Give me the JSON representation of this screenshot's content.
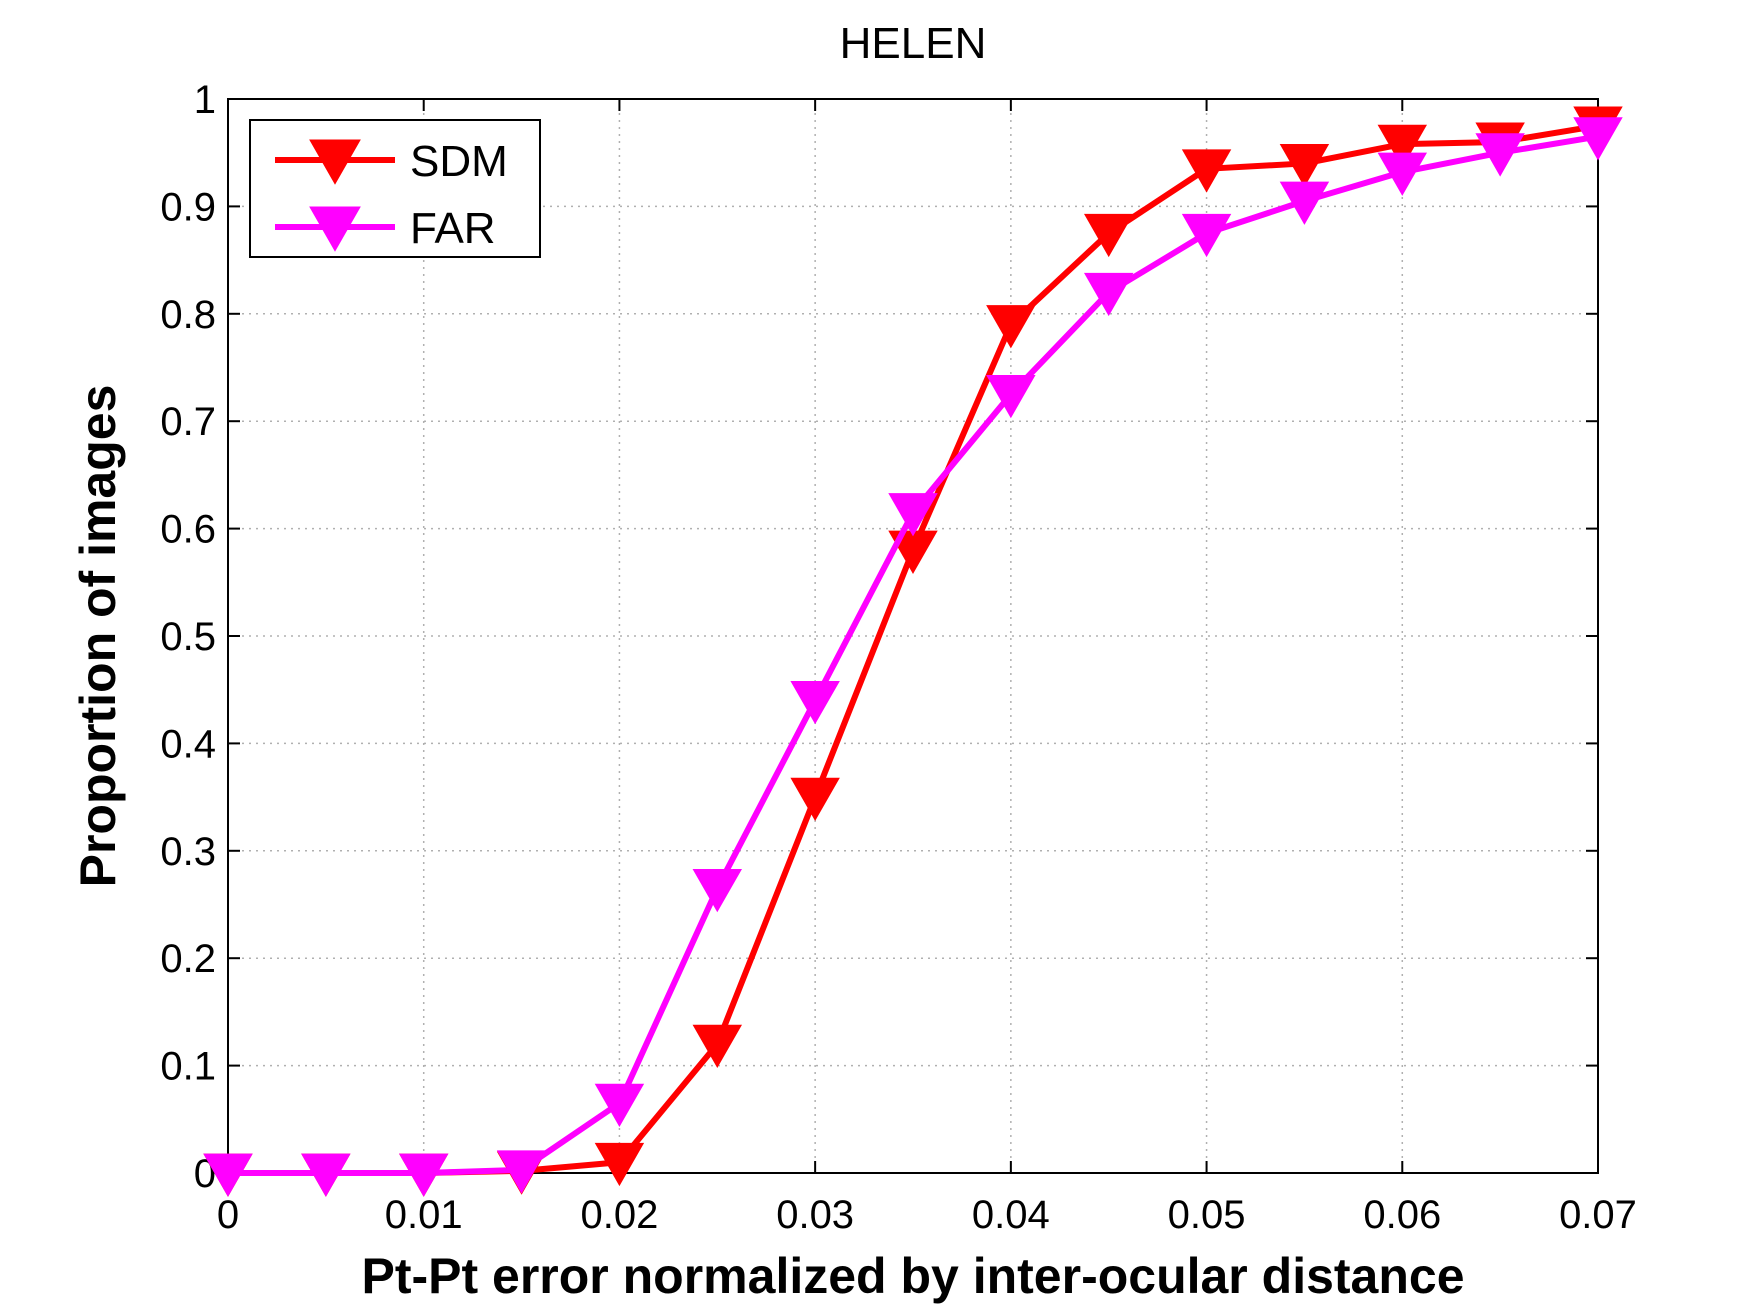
{
  "chart_data": {
    "type": "line",
    "title": "HELEN",
    "xlabel": "Pt-Pt error normalized by inter-ocular distance",
    "ylabel": "Proportion of images",
    "xlim": [
      0,
      0.07
    ],
    "ylim": [
      0,
      1
    ],
    "xticks": [
      0,
      0.01,
      0.02,
      0.03,
      0.04,
      0.05,
      0.06,
      0.07
    ],
    "xtick_labels": [
      "0",
      "0.01",
      "0.02",
      "0.03",
      "0.04",
      "0.05",
      "0.06",
      "0.07"
    ],
    "yticks": [
      0,
      0.1,
      0.2,
      0.3,
      0.4,
      0.5,
      0.6,
      0.7,
      0.8,
      0.9,
      1
    ],
    "ytick_labels": [
      "0",
      "0.1",
      "0.2",
      "0.3",
      "0.4",
      "0.5",
      "0.6",
      "0.7",
      "0.8",
      "0.9",
      "1"
    ],
    "grid": true,
    "legend_position": "top-left",
    "marker": "triangle-down",
    "x": [
      0,
      0.005,
      0.01,
      0.015,
      0.02,
      0.025,
      0.03,
      0.035,
      0.04,
      0.045,
      0.05,
      0.055,
      0.06,
      0.065,
      0.07
    ],
    "series": [
      {
        "name": "SDM",
        "color": "#ff0000",
        "values": [
          0,
          0,
          0,
          0.002,
          0.01,
          0.12,
          0.35,
          0.58,
          0.79,
          0.875,
          0.935,
          0.94,
          0.958,
          0.96,
          0.975
        ]
      },
      {
        "name": "FAR",
        "color": "#ff00ff",
        "values": [
          0,
          0,
          0,
          0.003,
          0.065,
          0.265,
          0.44,
          0.615,
          0.725,
          0.82,
          0.875,
          0.905,
          0.932,
          0.95,
          0.965
        ]
      }
    ]
  }
}
